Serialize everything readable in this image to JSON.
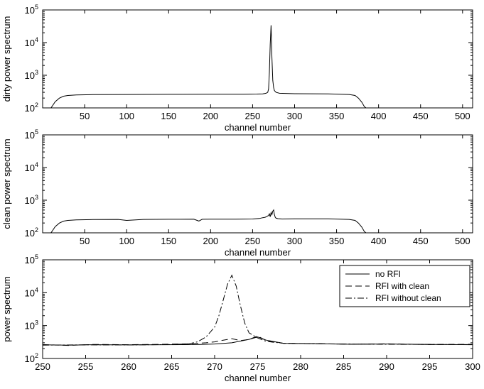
{
  "chart_data": [
    {
      "type": "line",
      "xlabel": "channel number",
      "ylabel": "dirty power spectrum",
      "xlim": [
        0,
        512
      ],
      "ylim": [
        100,
        100000
      ],
      "yscale": "log",
      "xticks": [
        50,
        100,
        150,
        200,
        250,
        300,
        350,
        400,
        450,
        500
      ],
      "xtick_labels": [
        "50",
        "100",
        "150",
        "200",
        "250",
        "300",
        "350",
        "400",
        "450",
        "500"
      ],
      "yticks": [
        100,
        1000,
        10000,
        100000
      ],
      "ytick_labels": [
        [
          "10",
          "2"
        ],
        [
          "10",
          "3"
        ],
        [
          "10",
          "4"
        ],
        [
          "10",
          "5"
        ]
      ],
      "grid": false,
      "series": [
        {
          "style": "solid",
          "x": [
            10,
            15,
            20,
            25,
            30,
            40,
            60,
            100,
            150,
            200,
            240,
            255,
            262,
            266,
            268,
            269,
            270,
            271,
            272,
            273,
            274,
            275,
            276,
            278,
            282,
            300,
            340,
            365,
            372,
            376,
            380,
            383,
            386
          ],
          "y": [
            100,
            155,
            200,
            228,
            240,
            250,
            255,
            258,
            260,
            262,
            263,
            265,
            270,
            280,
            300,
            380,
            1200,
            9000,
            34000,
            3500,
            700,
            420,
            340,
            300,
            280,
            272,
            268,
            258,
            240,
            200,
            150,
            110,
            95
          ]
        }
      ]
    },
    {
      "type": "line",
      "xlabel": "channel number",
      "ylabel": "clean power spectrum",
      "xlim": [
        0,
        512
      ],
      "ylim": [
        100,
        100000
      ],
      "yscale": "log",
      "xticks": [
        50,
        100,
        150,
        200,
        250,
        300,
        350,
        400,
        450,
        500
      ],
      "xtick_labels": [
        "50",
        "100",
        "150",
        "200",
        "250",
        "300",
        "350",
        "400",
        "450",
        "500"
      ],
      "yticks": [
        100,
        1000,
        10000,
        100000
      ],
      "ytick_labels": [
        [
          "10",
          "2"
        ],
        [
          "10",
          "3"
        ],
        [
          "10",
          "4"
        ],
        [
          "10",
          "5"
        ]
      ],
      "grid": false,
      "series": [
        {
          "style": "solid",
          "x": [
            10,
            15,
            20,
            25,
            30,
            40,
            60,
            90,
            100,
            120,
            150,
            180,
            186,
            190,
            200,
            230,
            250,
            258,
            262,
            265,
            267,
            269,
            270,
            271,
            272,
            273,
            274,
            275,
            276,
            277,
            278,
            280,
            285,
            300,
            340,
            365,
            372,
            376,
            380,
            383,
            386
          ],
          "y": [
            100,
            155,
            200,
            228,
            240,
            250,
            255,
            258,
            240,
            258,
            260,
            262,
            230,
            260,
            262,
            263,
            265,
            275,
            290,
            300,
            320,
            340,
            380,
            310,
            420,
            360,
            460,
            500,
            360,
            300,
            280,
            272,
            265,
            270,
            268,
            258,
            240,
            200,
            150,
            110,
            95
          ]
        }
      ]
    },
    {
      "type": "line",
      "xlabel": "channel number",
      "ylabel": "power spectrum",
      "xlim": [
        250,
        300
      ],
      "ylim": [
        100,
        100000
      ],
      "yscale": "log",
      "xticks": [
        250,
        255,
        260,
        265,
        270,
        275,
        280,
        285,
        290,
        295,
        300
      ],
      "xtick_labels": [
        "250",
        "255",
        "260",
        "265",
        "270",
        "275",
        "280",
        "285",
        "290",
        "295",
        "300"
      ],
      "yticks": [
        100,
        1000,
        10000,
        100000
      ],
      "ytick_labels": [
        [
          "10",
          "2"
        ],
        [
          "10",
          "3"
        ],
        [
          "10",
          "4"
        ],
        [
          "10",
          "5"
        ]
      ],
      "grid": false,
      "legend_position": "top-right",
      "series": [
        {
          "name": "no RFI",
          "style": "solid",
          "x": [
            250,
            253,
            256,
            260,
            264,
            268,
            270,
            272,
            274,
            275,
            276,
            278,
            282,
            286,
            290,
            295,
            300
          ],
          "y": [
            260,
            255,
            262,
            258,
            262,
            265,
            275,
            300,
            380,
            450,
            360,
            290,
            280,
            270,
            275,
            268,
            262
          ]
        },
        {
          "name": "RFI with clean",
          "style": "dashed",
          "x": [
            250,
            253,
            256,
            260,
            264,
            267,
            269,
            270,
            271,
            272,
            273,
            274,
            275,
            276,
            278,
            282,
            286,
            290,
            295,
            300
          ],
          "y": [
            265,
            250,
            268,
            262,
            270,
            280,
            300,
            320,
            360,
            400,
            350,
            380,
            480,
            350,
            290,
            282,
            272,
            278,
            265,
            270
          ]
        },
        {
          "name": "RFI without clean",
          "style": "dashdot",
          "x": [
            250,
            255,
            260,
            265,
            267,
            268,
            269,
            270,
            270.5,
            271,
            271.5,
            272,
            272.5,
            273,
            273.5,
            274,
            275,
            276,
            278,
            282,
            290,
            300
          ],
          "y": [
            255,
            260,
            258,
            265,
            280,
            320,
            450,
            900,
            2000,
            6000,
            18000,
            34000,
            16000,
            4000,
            1200,
            600,
            420,
            330,
            290,
            278,
            270,
            265
          ]
        }
      ]
    }
  ]
}
